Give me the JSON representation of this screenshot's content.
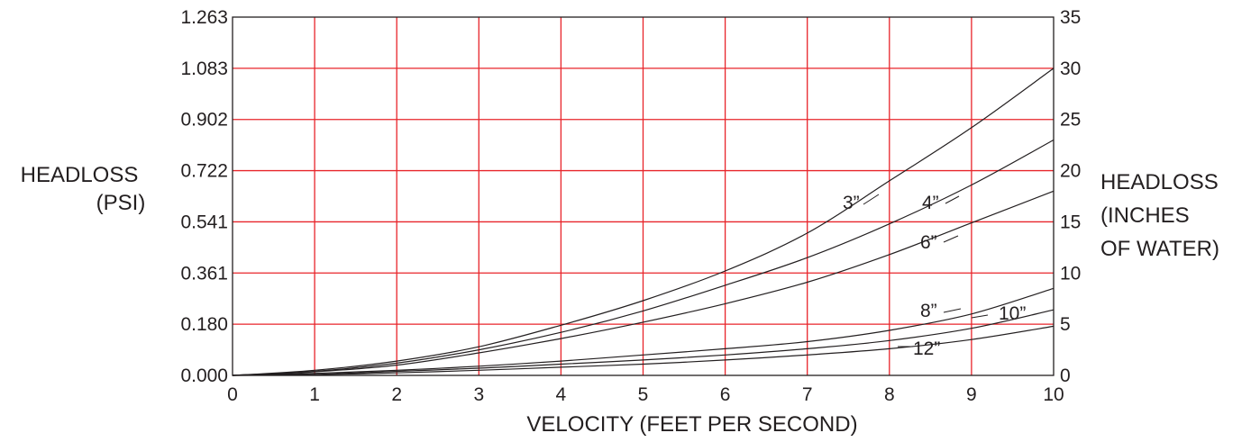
{
  "chart_data": {
    "type": "line",
    "title": "",
    "xlabel": "VELOCITY (FEET PER SECOND)",
    "ylabel_left": [
      "HEADLOSS",
      "(PSI)"
    ],
    "ylabel_right": [
      "HEADLOSS",
      "(INCHES",
      "OF WATER)"
    ],
    "xlim": [
      0,
      10
    ],
    "ylim_right": [
      0,
      35
    ],
    "x_ticks": [
      "0",
      "1",
      "2",
      "3",
      "4",
      "5",
      "6",
      "7",
      "8",
      "9",
      "10"
    ],
    "y_left_ticks": [
      "0.000",
      "0.180",
      "0.361",
      "0.541",
      "0.722",
      "0.902",
      "1.083",
      "1.263"
    ],
    "y_right_ticks": [
      "0",
      "5",
      "10",
      "15",
      "20",
      "25",
      "30",
      "35"
    ],
    "grid": true,
    "grid_color": "#e8242a",
    "line_color": "#231f20",
    "x": [
      0,
      1,
      2,
      3,
      4,
      5,
      6,
      7,
      8,
      9,
      10
    ],
    "series": [
      {
        "name": "3”",
        "values": [
          0,
          0.5,
          1.4,
          2.8,
          4.9,
          7.3,
          10.2,
          13.9,
          19.0,
          24.2,
          30.0
        ]
      },
      {
        "name": "4”",
        "values": [
          0,
          0.4,
          1.2,
          2.5,
          4.2,
          6.3,
          8.8,
          11.5,
          14.8,
          18.6,
          23.0
        ]
      },
      {
        "name": "6”",
        "values": [
          0,
          0.35,
          1.0,
          2.2,
          3.6,
          5.2,
          7.0,
          9.1,
          11.8,
          14.9,
          18.0
        ]
      },
      {
        "name": "8”",
        "values": [
          0,
          0.2,
          0.5,
          0.9,
          1.4,
          2.0,
          2.6,
          3.3,
          4.4,
          6.0,
          8.5
        ]
      },
      {
        "name": "10”",
        "values": [
          0,
          0.1,
          0.4,
          0.7,
          1.1,
          1.5,
          2.0,
          2.6,
          3.4,
          4.6,
          6.4
        ]
      },
      {
        "name": "12”",
        "values": [
          0,
          0.07,
          0.25,
          0.5,
          0.8,
          1.1,
          1.5,
          2.0,
          2.6,
          3.5,
          4.8
        ]
      }
    ]
  }
}
